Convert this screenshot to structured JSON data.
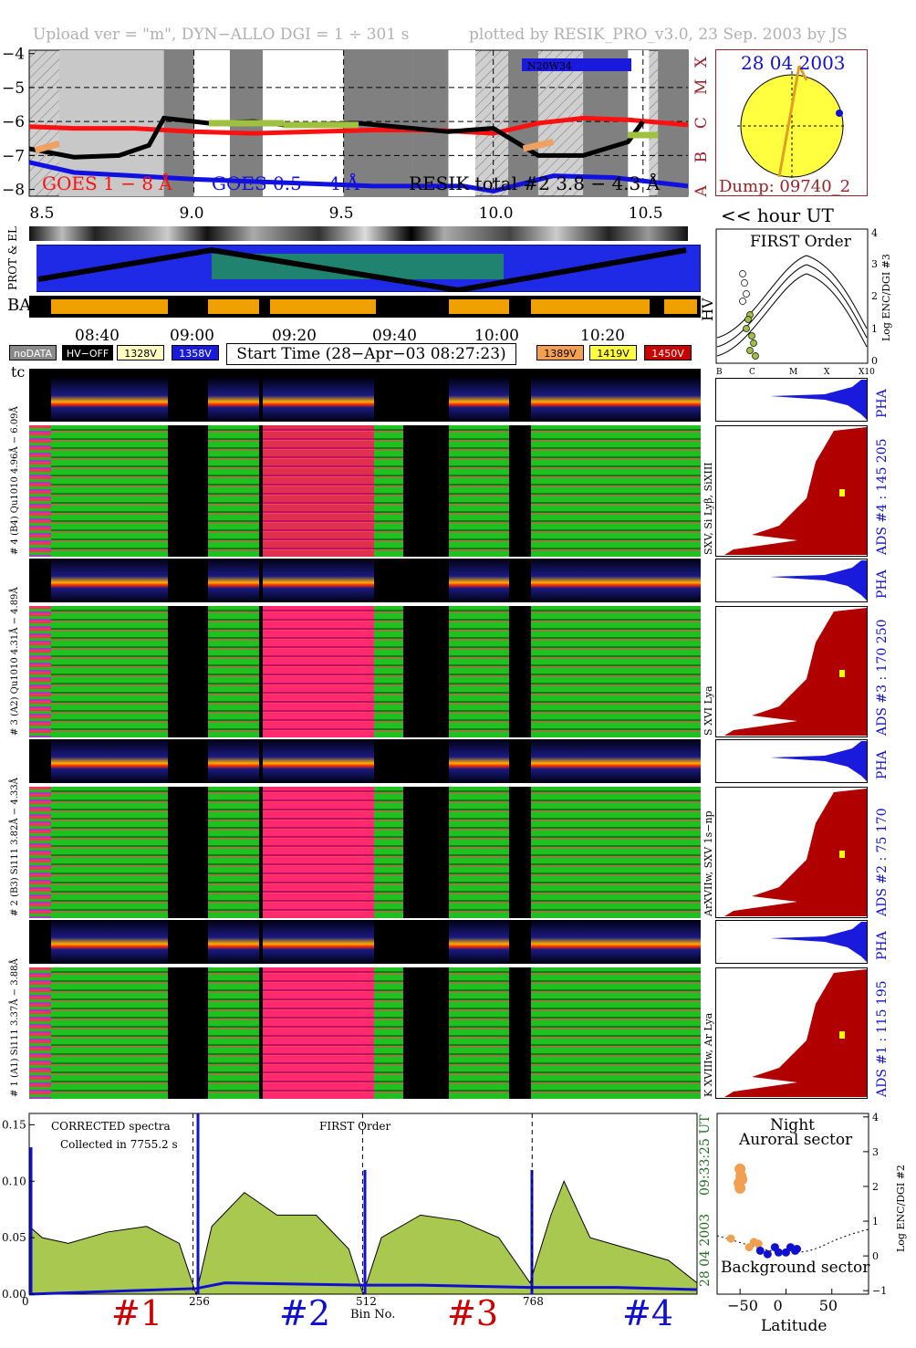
{
  "header": {
    "left": "Upload ver = \"m\", DYN−ALLO DGI =   1 ÷ 301 s",
    "right": "plotted by RESIK_PRO_v3.0, 23 Sep. 2003 by JS"
  },
  "goes_panel": {
    "y_ticks": [
      "−4",
      "−5",
      "−6",
      "−7",
      "−8"
    ],
    "class_labels": [
      "X",
      "M",
      "C",
      "B",
      "A"
    ],
    "x_ticks": [
      "8.5",
      "9.0",
      "9.5",
      "10.0",
      "10.5"
    ],
    "goes_long_label": "GOES 1 − 8 Å",
    "goes_short_label": "GOES 0.5 − 4 Å",
    "resik_label": "RESIK total #2  3.8 − 4.3 Å",
    "region_label": "N20W34",
    "colors": {
      "goes_long": "#ff1010",
      "goes_short": "#1010e0",
      "resik": "#000000",
      "hatch_bg": "#c8c8c8"
    }
  },
  "sun_panel": {
    "date": "28 04 2003",
    "dump": "Dump: 09740_2"
  },
  "hour_label": "<< hour UT",
  "strip_labels": {
    "prot_el": "PROT & EL",
    "ba": "BA",
    "hv": "HV",
    "tc": "tc"
  },
  "time_axis": [
    "08:40",
    "09:00",
    "09:20",
    "09:40",
    "10:00",
    "10:20"
  ],
  "legend_keys": [
    {
      "label": "noDATA",
      "bg": "#8a8a8a",
      "fg": "#ffffff"
    },
    {
      "label": "HV−OFF",
      "bg": "#000000",
      "fg": "#ffffff"
    },
    {
      "label": "1328V",
      "bg": "#ffffc0",
      "fg": "#000000"
    },
    {
      "label": "1358V",
      "bg": "#1a1adc",
      "fg": "#ffffff"
    },
    {
      "label": "1389V",
      "bg": "#f4a050",
      "fg": "#000000"
    },
    {
      "label": "1419V",
      "bg": "#ffff40",
      "fg": "#000000"
    },
    {
      "label": "1450V",
      "bg": "#c80000",
      "fg": "#ffffff"
    }
  ],
  "start_time": "Start Time (28−Apr−03 08:27:23)",
  "first_order_panel": {
    "title": "FIRST Order",
    "x_ticks": [
      "B",
      "C",
      "M",
      "X",
      "X10"
    ],
    "y_ticks": [
      "0",
      "1",
      "2",
      "3",
      "4"
    ],
    "y_label": "Log ENC/DGI #3"
  },
  "channels": [
    {
      "id": "4",
      "left_label": "# 4 (B4) Qu1010 4.96Å − 6.09Å",
      "side_label": "SXV, Si Lyβ, SiXIII",
      "ads_label": "ADS #4 :  145 205",
      "pha": "PHA"
    },
    {
      "id": "3",
      "left_label": "# 3 (A2) Qu1010 4.31Å − 4.89Å",
      "side_label": "S XVI Lya",
      "ads_label": "ADS #3 :  170 250",
      "pha": "PHA"
    },
    {
      "id": "2",
      "left_label": "# 2 (B3) Si111 3.82Å − 4.33Å",
      "side_label": "ArXVIIw, SXV 1s−np",
      "ads_label": "ADS #2 :  75 170",
      "pha": "PHA"
    },
    {
      "id": "1",
      "left_label": "# 1 (A1) Si111 3.37Å − 3.88Å",
      "side_label": "K XVIIIw, Ar Lya",
      "ads_label": "ADS #1 :  115 195",
      "pha": "PHA"
    }
  ],
  "spectrum_panel": {
    "note1": "CORRECTED spectra",
    "note2": "Collected in  7755.2 s",
    "order": "FIRST Order",
    "x_label": "Bin No.",
    "x_ticks": [
      "0",
      "256",
      "512",
      "768"
    ],
    "y_ticks": [
      "0.00",
      "0.05",
      "0.10",
      "0.15"
    ],
    "side_time": "09:33:25 UT",
    "side_date": "28 04 2003",
    "channel_tags": [
      {
        "label": "#1",
        "color": "#d00000"
      },
      {
        "label": "#2",
        "color": "#1010d0"
      },
      {
        "label": "#3",
        "color": "#d00000"
      },
      {
        "label": "#4",
        "color": "#1010d0"
      }
    ]
  },
  "latitude_panel": {
    "title1": "Night",
    "title2": "Auroral sector",
    "bottom": "Background sector",
    "x_label": "Latitude",
    "x_ticks": [
      "−50",
      "0",
      "50"
    ],
    "y_ticks": [
      "−1",
      "0",
      "1",
      "2",
      "3",
      "4"
    ],
    "y_label": "Log ENC/DGI #2"
  },
  "chart_data": [
    {
      "type": "line",
      "title": "",
      "xlabel": "hour UT",
      "ylabel": "",
      "xlim": [
        8.45,
        10.65
      ],
      "ylim": [
        -8.2,
        -3.9
      ],
      "series": [
        {
          "name": "GOES 1 − 8 Å",
          "x": [
            8.45,
            8.6,
            8.8,
            9.0,
            9.2,
            9.4,
            9.6,
            9.8,
            10.0,
            10.15,
            10.3,
            10.45,
            10.65
          ],
          "y": [
            -6.15,
            -6.2,
            -6.2,
            -6.3,
            -6.35,
            -6.3,
            -6.25,
            -6.25,
            -6.35,
            -6.05,
            -5.9,
            -5.95,
            -6.1
          ]
        },
        {
          "name": "GOES 0.5 − 4 Å",
          "x": [
            8.45,
            8.6,
            8.8,
            9.0,
            9.3,
            9.6,
            9.9,
            10.0,
            10.2,
            10.4,
            10.65
          ],
          "y": [
            -7.2,
            -7.5,
            -7.6,
            -7.7,
            -7.8,
            -7.9,
            -7.9,
            -8.05,
            -7.6,
            -7.65,
            -7.9
          ]
        },
        {
          "name": "RESIK total #2  3.8 − 4.3 Å",
          "x": [
            8.45,
            8.6,
            8.75,
            8.85,
            8.9,
            9.05,
            9.2,
            9.3,
            9.55,
            9.85,
            10.0,
            10.15,
            10.3,
            10.45,
            10.5
          ],
          "y": [
            -6.8,
            -7.05,
            -7.0,
            -6.7,
            -5.9,
            -6.05,
            -6.0,
            -6.1,
            -6.05,
            -6.3,
            -6.2,
            -7.0,
            -7.0,
            -6.6,
            -6.0
          ]
        }
      ]
    },
    {
      "type": "area",
      "title": "",
      "xlabel": "Bin No.",
      "ylabel": "",
      "xlim": [
        0,
        1024
      ],
      "ylim": [
        0,
        0.16
      ],
      "series": [
        {
          "name": "",
          "x": [
            0,
            20,
            60,
            120,
            180,
            230,
            256,
            280,
            330,
            380,
            440,
            490,
            512,
            540,
            600,
            660,
            720,
            768,
            800,
            820,
            860,
            920,
            980,
            1024
          ],
          "y": [
            0.06,
            0.05,
            0.045,
            0.055,
            0.06,
            0.045,
            0.0,
            0.06,
            0.09,
            0.07,
            0.07,
            0.04,
            0.0,
            0.05,
            0.07,
            0.065,
            0.05,
            0.01,
            0.07,
            0.1,
            0.05,
            0.04,
            0.03,
            0.01
          ]
        },
        {
          "name": "",
          "x": [
            0,
            256,
            300,
            512,
            600,
            768,
            900,
            1024
          ],
          "y": [
            0.0,
            0.005,
            0.01,
            0.008,
            0.008,
            0.006,
            0.006,
            0.004
          ]
        }
      ]
    },
    {
      "type": "scatter",
      "title": "",
      "xlabel": "Latitude",
      "ylabel": "Log ENC/DGI #2",
      "xlim": [
        -75,
        90
      ],
      "ylim": [
        -1.1,
        4.1
      ],
      "series": [
        {
          "name": "",
          "x": [
            -50,
            -49,
            -51,
            -48,
            -50,
            -60,
            -40,
            -35,
            -30
          ],
          "y": [
            2.5,
            2.3,
            2.1,
            2.2,
            1.95,
            0.5,
            0.25,
            0.4,
            0.35
          ]
        },
        {
          "name": "",
          "x": [
            -28,
            -20,
            -12,
            -8,
            0,
            5,
            10,
            12
          ],
          "y": [
            0.15,
            0.05,
            0.25,
            0.1,
            0.1,
            0.25,
            0.15,
            0.2
          ]
        }
      ]
    }
  ]
}
